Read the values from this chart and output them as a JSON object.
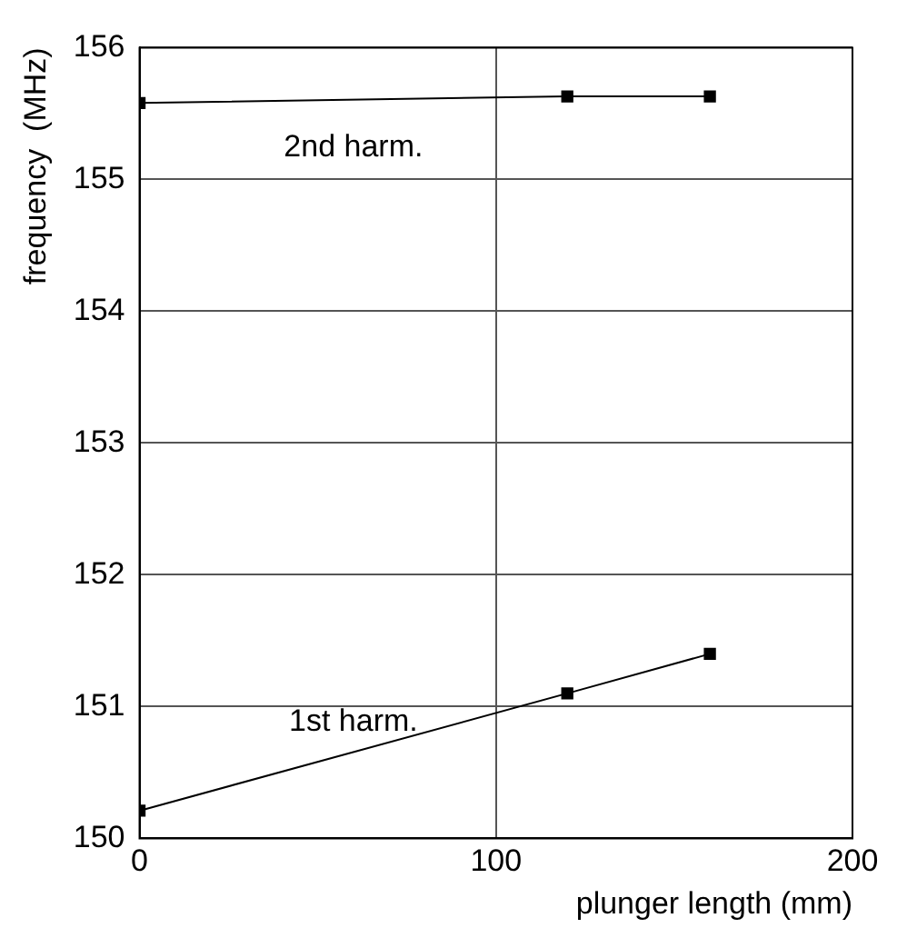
{
  "chart_data": {
    "type": "line",
    "xlabel": "plunger length (mm)",
    "ylabel": "frequency  (MHz)",
    "series": [
      {
        "name": "2nd harm.",
        "color": "#000000",
        "x": [
          0,
          120,
          160
        ],
        "values": [
          155.58,
          155.63,
          155.63
        ]
      },
      {
        "name": "1st harm.",
        "color": "#000000",
        "x": [
          0,
          120,
          160
        ],
        "values": [
          150.21,
          151.1,
          151.4
        ]
      }
    ],
    "xlim": [
      0,
      200
    ],
    "xticks": [
      0,
      100,
      200
    ],
    "ylim": [
      150,
      156
    ],
    "yticks": [
      150,
      151,
      152,
      153,
      154,
      155,
      156
    ],
    "grid": true,
    "legend": false,
    "marker": "square",
    "line_style": "solid"
  }
}
